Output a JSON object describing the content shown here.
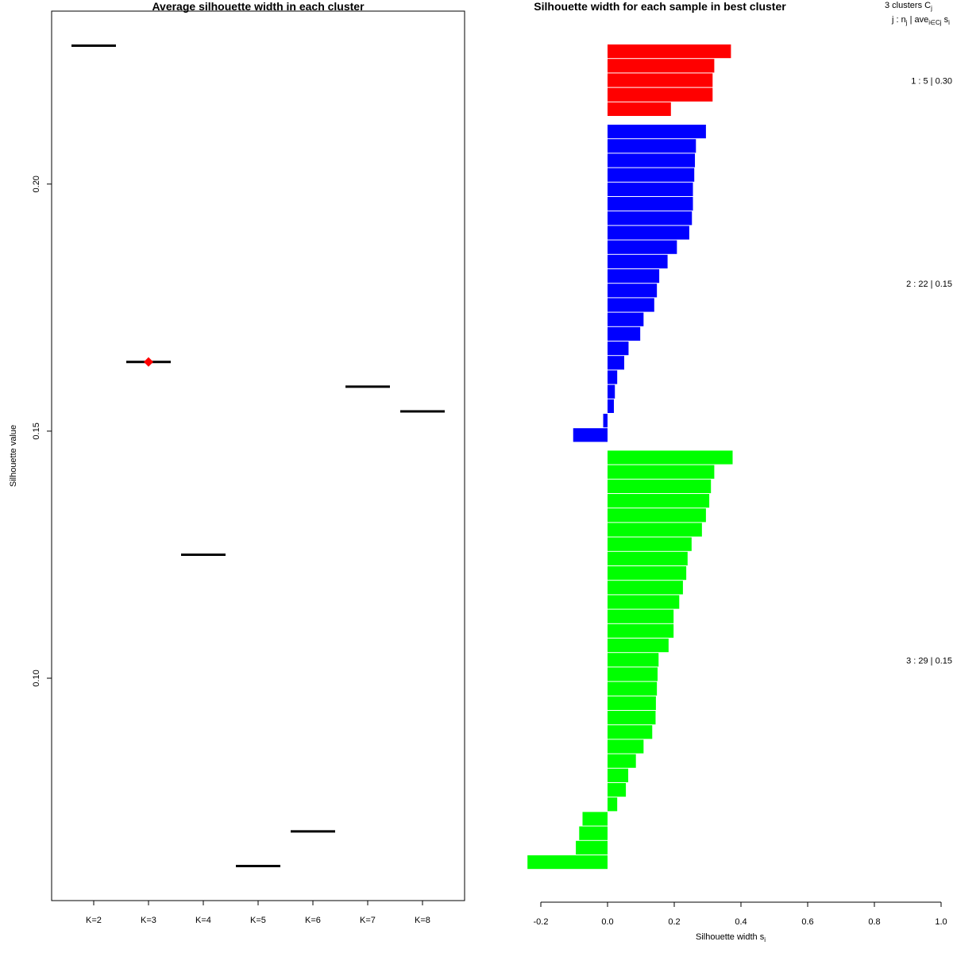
{
  "chart_data": [
    {
      "type": "line",
      "title": "Average silhouette width in each cluster",
      "xlabel": "",
      "ylabel": "Silhouette value",
      "categories": [
        "K=2",
        "K=3",
        "K=4",
        "K=5",
        "K=6",
        "K=7",
        "K=8"
      ],
      "values": [
        0.228,
        0.164,
        0.125,
        0.062,
        0.069,
        0.159,
        0.154
      ],
      "highlight_index": 1,
      "highlight_color": "#ff0000",
      "ylim": [
        0.055,
        0.235
      ],
      "yticks": [
        0.1,
        0.15,
        0.2
      ],
      "ytick_labels": [
        "0.10",
        "0.15",
        "0.20"
      ],
      "grid": false
    },
    {
      "type": "bar",
      "orientation": "horizontal",
      "title": "Silhouette width for each sample in best cluster",
      "xlabel": "Silhouette width s",
      "xlabel_sub": "i",
      "xlim": [
        -0.2,
        1.0
      ],
      "xticks": [
        -0.2,
        0.0,
        0.2,
        0.4,
        0.6,
        0.8,
        1.0
      ],
      "xtick_labels": [
        "-0.2",
        "0.0",
        "0.2",
        "0.4",
        "0.6",
        "0.8",
        "1.0"
      ],
      "legend_header": {
        "line1_text": "3  clusters  C",
        "line1_sub": "j",
        "line2_text": "j :  n",
        "line2_sub": "j",
        "line2_mid": " | ave",
        "line2_sub2": "i∈Cj",
        "line2_end": "  s",
        "line2_sub3": "i"
      },
      "series": [
        {
          "name": "1",
          "color": "#ff0000",
          "n": 5,
          "legend": "1 :  5  |  0.30",
          "values": [
            0.37,
            0.32,
            0.315,
            0.315,
            0.19
          ]
        },
        {
          "name": "2",
          "color": "#0000ff",
          "n": 22,
          "legend": "2 :  22  |  0.15",
          "values": [
            0.295,
            0.265,
            0.262,
            0.26,
            0.256,
            0.256,
            0.253,
            0.245,
            0.208,
            0.18,
            0.155,
            0.148,
            0.14,
            0.108,
            0.098,
            0.063,
            0.05,
            0.029,
            0.022,
            0.019,
            -0.013,
            -0.103
          ]
        },
        {
          "name": "3",
          "color": "#00ff00",
          "n": 29,
          "legend": "3 :  29  |  0.15",
          "values": [
            0.375,
            0.32,
            0.31,
            0.305,
            0.295,
            0.283,
            0.252,
            0.24,
            0.236,
            0.226,
            0.215,
            0.198,
            0.198,
            0.183,
            0.153,
            0.15,
            0.148,
            0.145,
            0.144,
            0.134,
            0.108,
            0.085,
            0.062,
            0.055,
            0.029,
            -0.075,
            -0.085,
            -0.095,
            -0.24
          ]
        }
      ]
    }
  ]
}
